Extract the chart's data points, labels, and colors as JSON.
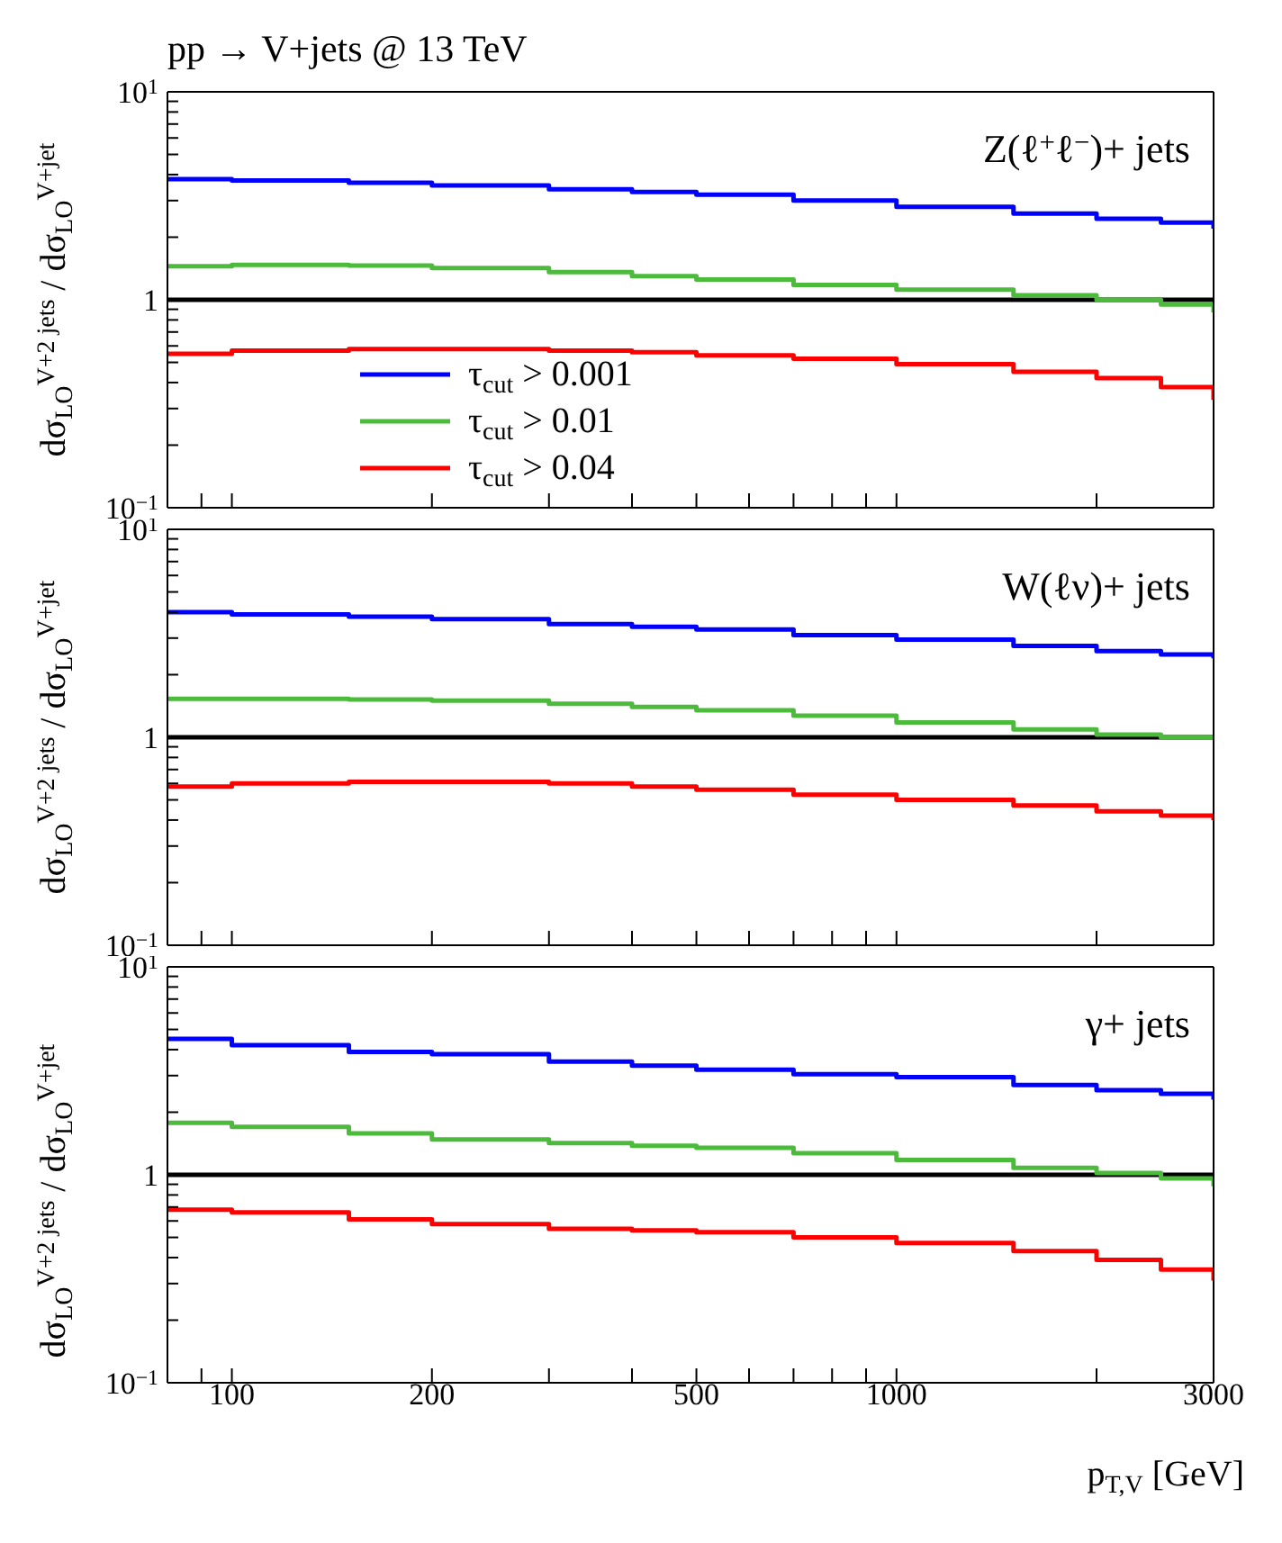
{
  "chart_data": [
    {
      "type": "step",
      "title": "pp → V+jets @ 13 TeV",
      "ylabel": "dσ$_{LO}$$^{V+2 jets}$ / dσ$_{LO}$$^{V+jet}$",
      "annotations": [
        "Z(ℓ$^{+}$ℓ$^{−}$)+ jets"
      ],
      "log": "xy",
      "legend": "bottom left",
      "tick_labels": "y",
      "x": [
        80,
        100,
        150,
        200,
        300,
        400,
        500,
        700,
        1000,
        1500,
        2000,
        2500,
        3000
      ],
      "xlim": [
        80,
        3000
      ],
      "ylim": [
        0.1,
        10
      ],
      "xticks": [
        {
          "value": 90,
          "label": null
        },
        {
          "value": 100,
          "label": null
        },
        {
          "value": 200,
          "label": null
        },
        {
          "value": 300,
          "label": null
        },
        {
          "value": 400,
          "label": null
        },
        {
          "value": 500,
          "label": null
        },
        {
          "value": 600,
          "label": null
        },
        {
          "value": 700,
          "label": null
        },
        {
          "value": 800,
          "label": null
        },
        {
          "value": 900,
          "label": null
        },
        {
          "value": 1000,
          "label": null
        },
        {
          "value": 2000,
          "label": null
        },
        {
          "value": 3000,
          "label": null
        }
      ],
      "yticks": [
        {
          "value": 0.1,
          "label": "10$^{−1}$"
        },
        {
          "value": 0.2,
          "label": null
        },
        {
          "value": 0.3,
          "label": null
        },
        {
          "value": 0.4,
          "label": null
        },
        {
          "value": 0.5,
          "label": null
        },
        {
          "value": 0.6,
          "label": null
        },
        {
          "value": 0.7,
          "label": null
        },
        {
          "value": 0.8,
          "label": null
        },
        {
          "value": 0.9,
          "label": null
        },
        {
          "value": 1,
          "label": "1"
        },
        {
          "value": 2,
          "label": null
        },
        {
          "value": 3,
          "label": null
        },
        {
          "value": 4,
          "label": null
        },
        {
          "value": 5,
          "label": null
        },
        {
          "value": 6,
          "label": null
        },
        {
          "value": 7,
          "label": null
        },
        {
          "value": 8,
          "label": null
        },
        {
          "value": 9,
          "label": null
        },
        {
          "value": 10,
          "label": "10$^{1}$"
        }
      ],
      "ref_lines": [
        {
          "axis": "y",
          "value": 1,
          "color": "#000000"
        }
      ],
      "series": [
        {
          "name": "τ$_{cut}$ > 0.001",
          "color": "#0000ff",
          "values": [
            3.8,
            3.75,
            3.65,
            3.55,
            3.4,
            3.3,
            3.2,
            3.0,
            2.8,
            2.6,
            2.45,
            2.35,
            2.2
          ]
        },
        {
          "name": "τ$_{cut}$ > 0.01",
          "color": "#4cbb3c",
          "values": [
            1.45,
            1.47,
            1.46,
            1.42,
            1.36,
            1.3,
            1.25,
            1.18,
            1.12,
            1.05,
            1.0,
            0.95,
            0.87
          ]
        },
        {
          "name": "τ$_{cut}$ > 0.04",
          "color": "#ff0000",
          "values": [
            0.55,
            0.57,
            0.58,
            0.58,
            0.57,
            0.56,
            0.54,
            0.52,
            0.49,
            0.45,
            0.42,
            0.38,
            0.33
          ]
        }
      ]
    },
    {
      "type": "step",
      "ylabel": "dσ$_{LO}$$^{V+2 jets}$ / dσ$_{LO}$$^{V+jet}$",
      "annotations": [
        "W(ℓν)+ jets"
      ],
      "log": "xy",
      "tick_labels": "y",
      "x": [
        80,
        100,
        150,
        200,
        300,
        400,
        500,
        700,
        1000,
        1500,
        2000,
        2500,
        3000
      ],
      "xlim": [
        80,
        3000
      ],
      "ylim": [
        0.1,
        10
      ],
      "xticks": [
        {
          "value": 90,
          "label": null
        },
        {
          "value": 100,
          "label": null
        },
        {
          "value": 200,
          "label": null
        },
        {
          "value": 300,
          "label": null
        },
        {
          "value": 400,
          "label": null
        },
        {
          "value": 500,
          "label": null
        },
        {
          "value": 600,
          "label": null
        },
        {
          "value": 700,
          "label": null
        },
        {
          "value": 800,
          "label": null
        },
        {
          "value": 900,
          "label": null
        },
        {
          "value": 1000,
          "label": null
        },
        {
          "value": 2000,
          "label": null
        },
        {
          "value": 3000,
          "label": null
        }
      ],
      "yticks": [
        {
          "value": 0.1,
          "label": "10$^{−1}$"
        },
        {
          "value": 0.2,
          "label": null
        },
        {
          "value": 0.3,
          "label": null
        },
        {
          "value": 0.4,
          "label": null
        },
        {
          "value": 0.5,
          "label": null
        },
        {
          "value": 0.6,
          "label": null
        },
        {
          "value": 0.7,
          "label": null
        },
        {
          "value": 0.8,
          "label": null
        },
        {
          "value": 0.9,
          "label": null
        },
        1,
        {
          "value": 2,
          "label": null
        },
        {
          "value": 3,
          "label": null
        },
        {
          "value": 4,
          "label": null
        },
        {
          "value": 5,
          "label": null
        },
        {
          "value": 6,
          "label": null
        },
        {
          "value": 7,
          "label": null
        },
        {
          "value": 8,
          "label": null
        },
        {
          "value": 9,
          "label": null
        },
        {
          "value": 10,
          "label": "10$^{1}$"
        }
      ],
      "ref_lines": [
        {
          "axis": "y",
          "value": 1,
          "color": "#000000"
        }
      ],
      "series": [
        {
          "color": "#0000ff",
          "values": [
            4.0,
            3.9,
            3.8,
            3.7,
            3.5,
            3.4,
            3.3,
            3.1,
            2.95,
            2.75,
            2.6,
            2.5,
            2.4
          ]
        },
        {
          "color": "#4cbb3c",
          "values": [
            1.53,
            1.53,
            1.52,
            1.5,
            1.45,
            1.4,
            1.35,
            1.27,
            1.18,
            1.09,
            1.03,
            1.0,
            0.98
          ]
        },
        {
          "color": "#ff0000",
          "values": [
            0.58,
            0.6,
            0.61,
            0.61,
            0.6,
            0.58,
            0.56,
            0.53,
            0.5,
            0.47,
            0.44,
            0.42,
            0.4
          ]
        }
      ]
    },
    {
      "type": "step",
      "ylabel": "dσ$_{LO}$$^{V+2 jets}$ / dσ$_{LO}$$^{V+jet}$",
      "xlabel": "p$_{T,V}$ [GeV]",
      "annotations": [
        "γ+ jets"
      ],
      "log": "xy",
      "x": [
        80,
        100,
        150,
        200,
        300,
        400,
        500,
        700,
        1000,
        1500,
        2000,
        2500,
        3000
      ],
      "xlim": [
        80,
        3000
      ],
      "ylim": [
        0.1,
        10
      ],
      "xticks": [
        {
          "value": 90,
          "label": null
        },
        100,
        200,
        {
          "value": 300,
          "label": null
        },
        {
          "value": 400,
          "label": null
        },
        500,
        {
          "value": 600,
          "label": null
        },
        {
          "value": 700,
          "label": null
        },
        {
          "value": 800,
          "label": null
        },
        {
          "value": 900,
          "label": null
        },
        1000,
        {
          "value": 2000,
          "label": null
        },
        3000
      ],
      "yticks": [
        {
          "value": 0.1,
          "label": "10$^{−1}$"
        },
        {
          "value": 0.2,
          "label": null
        },
        {
          "value": 0.3,
          "label": null
        },
        {
          "value": 0.4,
          "label": null
        },
        {
          "value": 0.5,
          "label": null
        },
        {
          "value": 0.6,
          "label": null
        },
        {
          "value": 0.7,
          "label": null
        },
        {
          "value": 0.8,
          "label": null
        },
        {
          "value": 0.9,
          "label": null
        },
        1,
        {
          "value": 2,
          "label": null
        },
        {
          "value": 3,
          "label": null
        },
        {
          "value": 4,
          "label": null
        },
        {
          "value": 5,
          "label": null
        },
        {
          "value": 6,
          "label": null
        },
        {
          "value": 7,
          "label": null
        },
        {
          "value": 8,
          "label": null
        },
        {
          "value": 9,
          "label": null
        },
        {
          "value": 10,
          "label": "10$^{1}$"
        }
      ],
      "ref_lines": [
        {
          "axis": "y",
          "value": 1,
          "color": "#000000"
        }
      ],
      "series": [
        {
          "color": "#0000ff",
          "values": [
            4.5,
            4.2,
            3.9,
            3.8,
            3.5,
            3.35,
            3.2,
            3.05,
            2.95,
            2.7,
            2.55,
            2.45,
            2.3
          ]
        },
        {
          "color": "#4cbb3c",
          "values": [
            1.78,
            1.7,
            1.58,
            1.48,
            1.42,
            1.38,
            1.35,
            1.27,
            1.18,
            1.08,
            1.02,
            0.96,
            0.88
          ]
        },
        {
          "color": "#ff0000",
          "values": [
            0.68,
            0.66,
            0.61,
            0.58,
            0.55,
            0.54,
            0.53,
            0.5,
            0.47,
            0.43,
            0.39,
            0.35,
            0.31
          ]
        }
      ]
    }
  ]
}
